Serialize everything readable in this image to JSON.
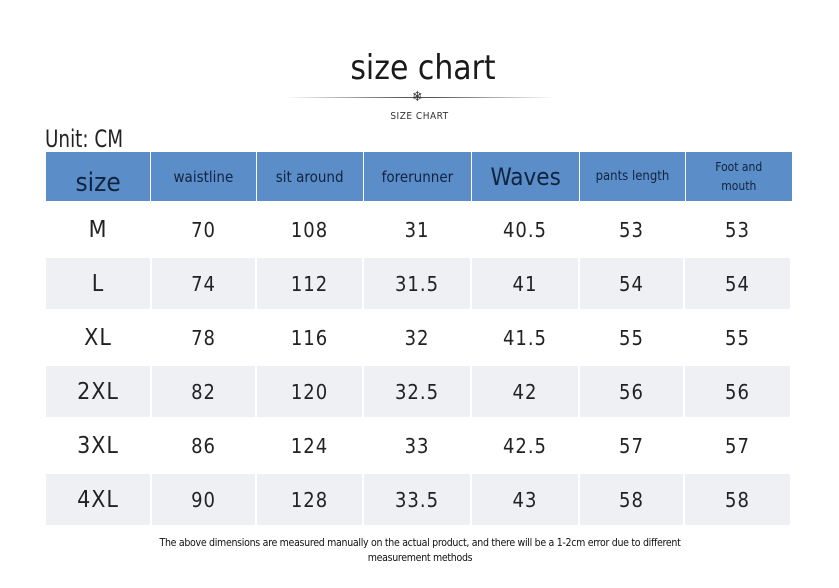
{
  "header": {
    "title": "size chart",
    "subtitle": "SIZE CHART",
    "unit": "Unit: CM"
  },
  "table": {
    "columns": [
      "size",
      "waistline",
      "sit around",
      "forerunner",
      "Waves",
      "pants length",
      "Foot and mouth"
    ],
    "rows": [
      [
        "M",
        70,
        108,
        31,
        40.5,
        53,
        53
      ],
      [
        "L",
        74,
        112,
        31.5,
        41,
        54,
        54
      ],
      [
        "XL",
        78,
        116,
        32,
        41.5,
        55,
        55
      ],
      [
        "2XL",
        82,
        120,
        32.5,
        42,
        56,
        56
      ],
      [
        "3XL",
        86,
        124,
        33,
        42.5,
        57,
        57
      ],
      [
        "4XL",
        90,
        128,
        33.5,
        43,
        58,
        58
      ]
    ]
  },
  "footnote": "The above dimensions are measured manually on the actual product, and there will be a 1-2cm error due to different measurement methods"
}
